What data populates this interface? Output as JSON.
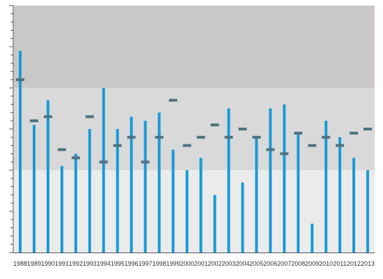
{
  "chart_data": {
    "type": "bar",
    "categories": [
      "1988",
      "1989",
      "1990",
      "1991",
      "1992",
      "1993",
      "1994",
      "1995",
      "1996",
      "1997",
      "1998",
      "1999",
      "2000",
      "2001",
      "2002",
      "2003",
      "2004",
      "2005",
      "2006",
      "2007",
      "2008",
      "2009",
      "2010",
      "2011",
      "2012",
      "2013"
    ],
    "series": [
      {
        "role": "bars",
        "values": [
          49,
          31,
          37,
          21,
          24,
          30,
          40,
          30,
          33,
          32,
          34,
          25,
          20,
          23,
          14,
          35,
          17,
          28,
          35,
          36,
          29,
          7,
          32,
          28,
          23,
          20
        ]
      },
      {
        "role": "target-markers",
        "values": [
          42,
          32,
          33,
          25,
          23,
          33,
          22,
          26,
          28,
          22,
          28,
          37,
          26,
          28,
          31,
          28,
          30,
          28,
          25,
          24,
          29,
          26,
          28,
          26,
          29,
          30
        ]
      }
    ],
    "ylim": [
      0,
      60
    ],
    "bands": [
      {
        "from": 0,
        "to": 20,
        "color": "#ebebeb"
      },
      {
        "from": 20,
        "to": 40,
        "color": "#d9d9d9"
      },
      {
        "from": 40,
        "to": 60,
        "color": "#cac7c7"
      }
    ],
    "colors": {
      "bar": "#1a9ad6",
      "marker": "#4e7280",
      "axis": "#555555"
    },
    "grid": false,
    "y_tick_labels": false
  }
}
